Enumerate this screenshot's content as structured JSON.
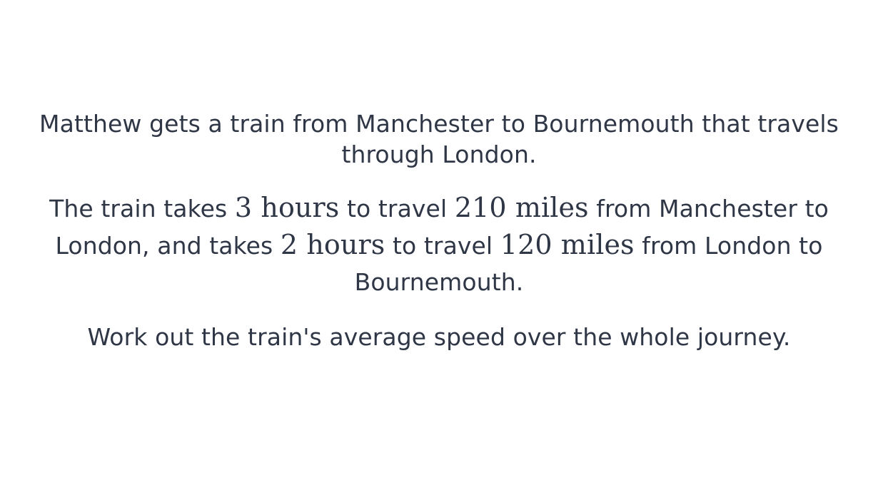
{
  "question": {
    "paragraph1": "Matthew gets a train from Manchester to Bournemouth that travels through London.",
    "paragraph2": {
      "text1": "The train takes ",
      "math1": "3 hours",
      "text2": " to travel ",
      "math2": "210 miles",
      "text3": " from Manchester to London, and takes ",
      "math3": "2 hours",
      "text4": " to travel ",
      "math4": "120 miles",
      "text5": " from London to Bournemouth."
    },
    "paragraph3": "Work out the train's average speed over the whole journey."
  }
}
